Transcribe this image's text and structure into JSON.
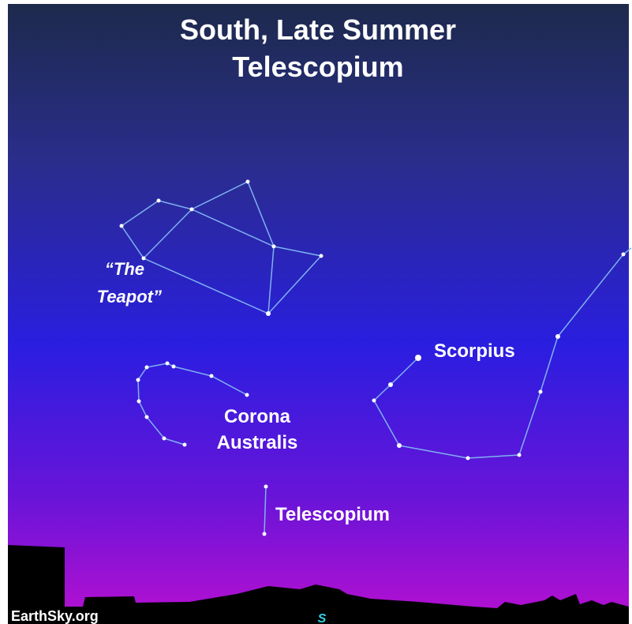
{
  "header": {
    "title": [
      "South, Late Summer",
      "Telescopium"
    ]
  },
  "labels": {
    "teapot": [
      "“The",
      "Teapot”"
    ],
    "scorpius": "Scorpius",
    "corona_australis": [
      "Corona",
      "Australis"
    ],
    "telescopium": "Telescopium"
  },
  "footer": {
    "credit": "EarthSky.org",
    "direction": "S"
  }
}
